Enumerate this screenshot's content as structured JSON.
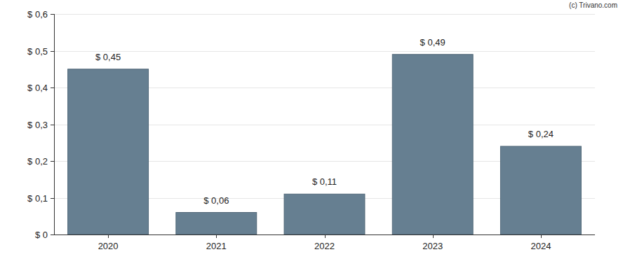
{
  "chart_data": {
    "type": "bar",
    "categories": [
      "2020",
      "2021",
      "2022",
      "2023",
      "2024"
    ],
    "values": [
      0.45,
      0.06,
      0.11,
      0.49,
      0.24
    ],
    "value_labels": [
      "$ 0,45",
      "$ 0,06",
      "$ 0,11",
      "$ 0,49",
      "$ 0,24"
    ],
    "color": "#667f91",
    "ylim": [
      0,
      0.6
    ],
    "yticks": [
      {
        "value": 0,
        "label": "$ 0"
      },
      {
        "value": 0.1,
        "label": "$ 0,1"
      },
      {
        "value": 0.2,
        "label": "$ 0,2"
      },
      {
        "value": 0.3,
        "label": "$ 0,3"
      },
      {
        "value": 0.4,
        "label": "$ 0,4"
      },
      {
        "value": 0.5,
        "label": "$ 0,5"
      },
      {
        "value": 0.6,
        "label": "$ 0,6"
      }
    ],
    "grid": true,
    "data_labels": true,
    "annotations": [
      "(c) Trivano.com"
    ]
  }
}
